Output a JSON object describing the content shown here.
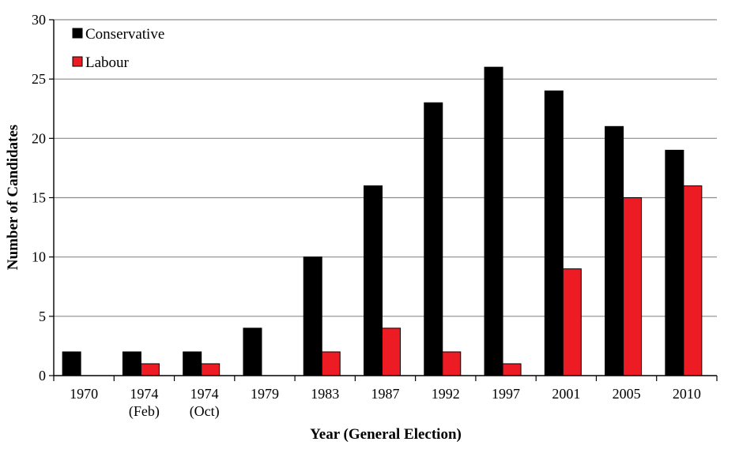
{
  "chart_data": {
    "type": "bar",
    "xlabel": "Year (General Election)",
    "ylabel": "Number of Candidates",
    "ylim": [
      0,
      30
    ],
    "yticks": [
      0,
      5,
      10,
      15,
      20,
      25,
      30
    ],
    "grid": true,
    "legend_position": "top-left",
    "categories": [
      [
        "1970"
      ],
      [
        "1974",
        "(Feb)"
      ],
      [
        "1974",
        "(Oct)"
      ],
      [
        "1979"
      ],
      [
        "1983"
      ],
      [
        "1987"
      ],
      [
        "1992"
      ],
      [
        "1997"
      ],
      [
        "2001"
      ],
      [
        "2005"
      ],
      [
        "2010"
      ]
    ],
    "series": [
      {
        "name": "Conservative",
        "color": "#000000",
        "values": [
          2,
          2,
          2,
          4,
          10,
          16,
          23,
          26,
          24,
          21,
          19
        ]
      },
      {
        "name": "Labour",
        "color": "#ed1c24",
        "values": [
          0,
          1,
          1,
          0,
          2,
          4,
          2,
          1,
          9,
          15,
          16
        ]
      }
    ]
  }
}
